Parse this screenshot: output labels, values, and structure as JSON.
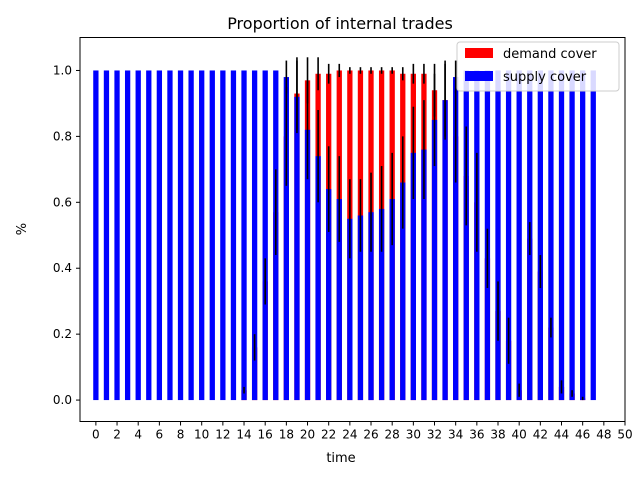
{
  "chart_data": {
    "type": "bar",
    "title": "Proportion of internal trades",
    "xlabel": "time",
    "ylabel": "%",
    "xlim": [
      -1.5,
      50
    ],
    "ylim": [
      -0.065,
      1.1
    ],
    "xticks": [
      0,
      2,
      4,
      6,
      8,
      10,
      12,
      14,
      16,
      18,
      20,
      22,
      24,
      26,
      28,
      30,
      32,
      34,
      36,
      38,
      40,
      42,
      44,
      46,
      48,
      50
    ],
    "yticks": [
      0.0,
      0.2,
      0.4,
      0.6,
      0.8,
      1.0
    ],
    "ytick_labels": [
      "0.0",
      "0.2",
      "0.4",
      "0.6",
      "0.8",
      "1.0"
    ],
    "legend_position": "top-right",
    "grid": false,
    "x": [
      0,
      1,
      2,
      3,
      4,
      5,
      6,
      7,
      8,
      9,
      10,
      11,
      12,
      13,
      14,
      15,
      16,
      17,
      18,
      19,
      20,
      21,
      22,
      23,
      24,
      25,
      26,
      27,
      28,
      29,
      30,
      31,
      32,
      33,
      34,
      35,
      36,
      37,
      38,
      39,
      40,
      41,
      42,
      43,
      44,
      45,
      46,
      47
    ],
    "series": [
      {
        "name": "demand cover",
        "color": "#ff0000",
        "values": [
          0,
          0,
          0,
          0,
          0,
          0,
          0,
          0,
          0,
          0,
          0,
          0,
          0,
          0,
          0.03,
          0.16,
          0.36,
          0.57,
          0.8,
          0.93,
          0.97,
          0.99,
          0.99,
          1.0,
          1.0,
          1.0,
          1.0,
          1.0,
          1.0,
          0.99,
          0.99,
          0.99,
          0.94,
          0.91,
          0.8,
          0.68,
          0.6,
          0.43,
          0.27,
          0.18,
          0.03,
          0.49,
          0.39,
          0.22,
          0.04,
          0.02,
          0.005,
          0
        ],
        "errors": [
          0,
          0,
          0,
          0,
          0,
          0,
          0,
          0,
          0,
          0,
          0,
          0,
          0,
          0,
          0.01,
          0.04,
          0.07,
          0.13,
          0.15,
          0.11,
          0.07,
          0.05,
          0.03,
          0.02,
          0.01,
          0.01,
          0.01,
          0.01,
          0.01,
          0.02,
          0.03,
          0.03,
          0.08,
          0.11,
          0.14,
          0.15,
          0.15,
          0.09,
          0.09,
          0.07,
          0.02,
          0.05,
          0.05,
          0.03,
          0.02,
          0.01,
          0.005,
          0
        ]
      },
      {
        "name": "supply cover",
        "color": "#0000ff",
        "values": [
          1,
          1,
          1,
          1,
          1,
          1,
          1,
          1,
          1,
          1,
          1,
          1,
          1,
          1,
          1,
          1,
          1,
          1,
          0.98,
          0.92,
          0.82,
          0.74,
          0.64,
          0.61,
          0.55,
          0.56,
          0.57,
          0.58,
          0.61,
          0.66,
          0.75,
          0.76,
          0.85,
          0.91,
          0.98,
          1.0,
          1.0,
          1.0,
          1.0,
          1.0,
          1.0,
          1.0,
          1.0,
          1.0,
          1.0,
          1.0,
          1.0,
          1.0
        ],
        "errors": [
          0,
          0,
          0,
          0,
          0,
          0,
          0,
          0,
          0,
          0,
          0,
          0,
          0,
          0,
          0,
          0,
          0,
          0,
          0.05,
          0.11,
          0.15,
          0.14,
          0.13,
          0.13,
          0.12,
          0.11,
          0.12,
          0.13,
          0.14,
          0.14,
          0.14,
          0.15,
          0.14,
          0.12,
          0.05,
          0,
          0,
          0,
          0,
          0,
          0,
          0,
          0,
          0,
          0,
          0,
          0,
          0
        ]
      }
    ]
  }
}
